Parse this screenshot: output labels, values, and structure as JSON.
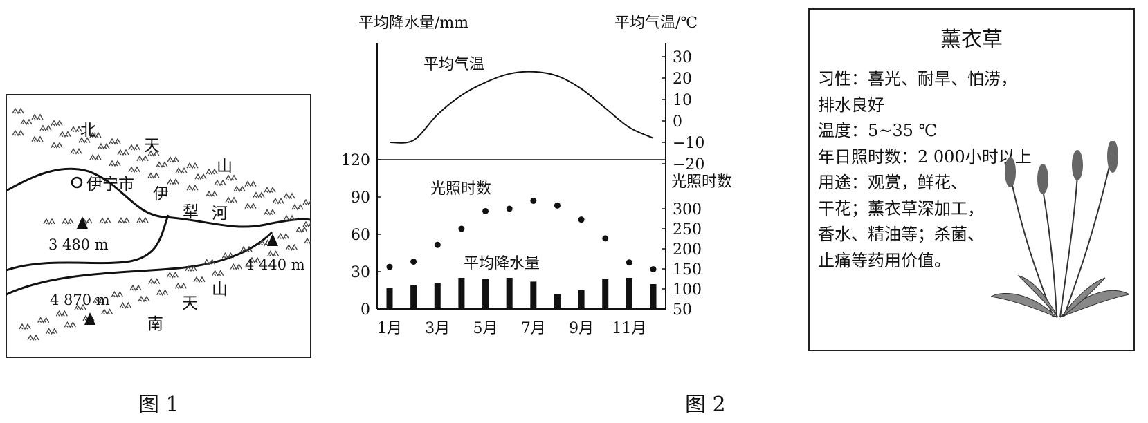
{
  "figure1": {
    "caption": "图 1",
    "labels": {
      "north_1": "北",
      "north_2": "天",
      "north_3": "山",
      "south_1": "南",
      "south_2": "天",
      "south_3": "山",
      "river_1": "伊",
      "river_2": "犁",
      "river_3": "河",
      "city": "伊宁市"
    },
    "peaks": [
      "3 480 m",
      "4 440 m",
      "4 870 m"
    ]
  },
  "figure2": {
    "caption": "图 2",
    "chart_data": {
      "type": "line+bar+scatter",
      "x_months": [
        1,
        2,
        3,
        4,
        5,
        6,
        7,
        8,
        9,
        10,
        11,
        12
      ],
      "x_tick_labels": [
        "1月",
        "3月",
        "5月",
        "7月",
        "9月",
        "11月"
      ],
      "left_axis_title": "平均降水量/mm",
      "right_axis_title_top": "平均气温/℃",
      "right_axis_title_bottom": "光照时数",
      "left_ticks": [
        "0",
        "30",
        "60",
        "90",
        "120"
      ],
      "temp_ticks": [
        "30",
        "20",
        "10",
        "0",
        "−10",
        "−20"
      ],
      "sun_ticks": [
        "300",
        "250",
        "200",
        "150",
        "100",
        "50"
      ],
      "series": [
        {
          "name": "平均气温",
          "kind": "line",
          "unit": "℃",
          "values": [
            -10,
            -9,
            3,
            12,
            18,
            22,
            23,
            21,
            15,
            6,
            -3,
            -8
          ]
        },
        {
          "name": "光照时数",
          "kind": "scatter",
          "values": [
            155,
            168,
            210,
            250,
            294,
            300,
            320,
            308,
            273,
            226,
            166,
            149
          ]
        },
        {
          "name": "平均降水量",
          "kind": "bar",
          "unit": "mm",
          "values": [
            17,
            19,
            21,
            25,
            24,
            25,
            22,
            12,
            15,
            24,
            25,
            20
          ]
        }
      ],
      "ylim_precip": [
        0,
        120
      ],
      "ylim_temp": [
        -20,
        30
      ],
      "ylim_sun": [
        50,
        330
      ]
    }
  },
  "infobox": {
    "title": "薰衣草",
    "lines": [
      "习性：喜光、耐旱、怕涝，",
      "排水良好",
      "温度：5~35 ℃",
      "年日照时数：2 000小时以上",
      "用途：观赏，鲜花、",
      "干花；薰衣草深加工，",
      "香水、精油等；杀菌、",
      "止痛等药用价值。"
    ]
  }
}
